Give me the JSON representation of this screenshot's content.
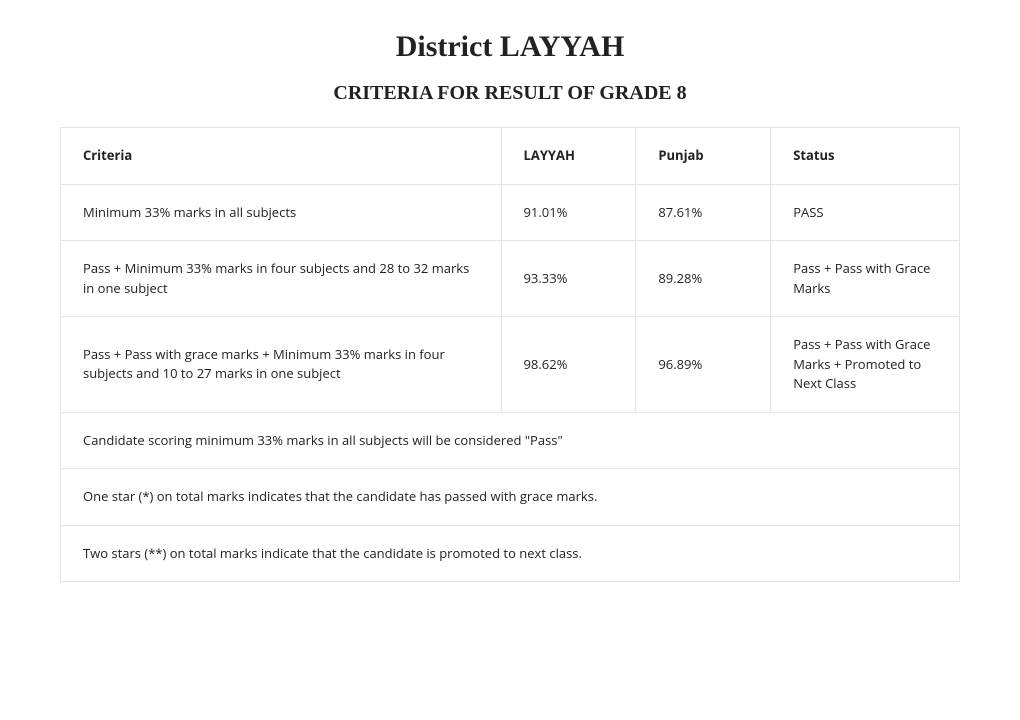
{
  "title": "District LAYYAH",
  "subtitle": "CRITERIA FOR RESULT OF GRADE 8",
  "columns": {
    "criteria": "Criteria",
    "layyah": "LAYYAH",
    "punjab": "Punjab",
    "status": "Status"
  },
  "rows": [
    {
      "criteria": "Minimum 33% marks in all subjects",
      "layyah": "91.01%",
      "punjab": "87.61%",
      "status": "PASS"
    },
    {
      "criteria": "Pass + Minimum 33% marks in four subjects and 28 to 32 marks in one subject",
      "layyah": "93.33%",
      "punjab": "89.28%",
      "status": "Pass + Pass with Grace Marks"
    },
    {
      "criteria": "Pass + Pass with grace marks + Minimum 33% marks in four subjects and 10 to 27 marks in one subject",
      "layyah": "98.62%",
      "punjab": "96.89%",
      "status": "Pass + Pass with Grace Marks + Promoted to Next Class"
    }
  ],
  "notes": [
    "Candidate scoring minimum 33% marks in all subjects will be considered \"Pass\"",
    "One star (*) on total marks indicates that the candidate has passed with grace marks.",
    "Two stars (**) on total marks indicate that the candidate is promoted to next class."
  ],
  "style": {
    "border_color": "#e4e4e4",
    "background_color": "#ffffff",
    "text_color": "#222222",
    "title_fontsize": 30,
    "subtitle_fontsize": 20,
    "body_fontsize": 13
  }
}
